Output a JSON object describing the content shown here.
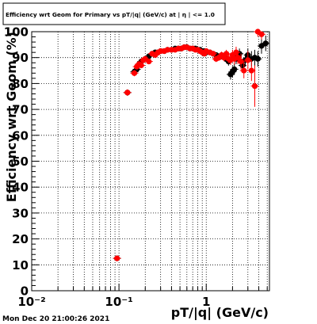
{
  "footer": {
    "timestamp": "Mon Dec 20 21:00:26 2021"
  },
  "chart_data": {
    "type": "scatter",
    "title": "Efficiency wrt Geom for Primary vs pT/|q| (GeV/c) at | η | <= 1.0",
    "xlabel": "pT/|q| (GeV/c)",
    "ylabel": "Efficiency wrt Geom (%)",
    "x_scale": "log",
    "xlim": [
      0.01,
      5.3
    ],
    "ylim": [
      0,
      100
    ],
    "x_tick_labels": [
      "10⁻²",
      "10⁻¹",
      "1"
    ],
    "y_tick_labels": [
      "0",
      "10",
      "20",
      "30",
      "40",
      "50",
      "60",
      "70",
      "80",
      "90",
      "100"
    ],
    "grid": true,
    "grid_style": "dotted",
    "legend": "none",
    "series": [
      {
        "marker_color": "#000000",
        "x": [
          0.095,
          0.125,
          0.15,
          0.16,
          0.17,
          0.18,
          0.2,
          0.22,
          0.24,
          0.26,
          0.28,
          0.3,
          0.33,
          0.36,
          0.4,
          0.44,
          0.48,
          0.52,
          0.56,
          0.6,
          0.65,
          0.7,
          0.75,
          0.8,
          0.85,
          0.9,
          0.95,
          1.0,
          1.1,
          1.2,
          1.3,
          1.4,
          1.5,
          1.6,
          1.7,
          1.8,
          1.9,
          2.0,
          2.1,
          2.2,
          2.3,
          2.4,
          2.6,
          2.8,
          3.0,
          3.3,
          3.6,
          3.9,
          4.3,
          4.8
        ],
        "y": [
          12.5,
          76.5,
          84.5,
          85.5,
          87.5,
          88.5,
          89.5,
          90.5,
          91.5,
          92.0,
          92.0,
          92.5,
          92.5,
          93.0,
          93.0,
          93.5,
          93.5,
          93.5,
          94.0,
          94.0,
          93.5,
          93.5,
          93.5,
          93.0,
          93.0,
          92.5,
          92.5,
          92.0,
          92.0,
          91.5,
          91.0,
          90.5,
          90.5,
          90.0,
          89.5,
          88.5,
          83.5,
          84.5,
          85.5,
          89.5,
          90.5,
          91.5,
          87.0,
          89.0,
          91.0,
          89.5,
          90.0,
          89.5,
          94.5,
          95.5
        ],
        "y_err": [
          1.0,
          1.2,
          1.2,
          1.0,
          1.0,
          1.0,
          0.9,
          0.9,
          0.9,
          0.8,
          0.8,
          0.8,
          0.8,
          0.8,
          0.8,
          0.8,
          0.8,
          0.8,
          0.8,
          0.8,
          0.8,
          0.8,
          0.8,
          0.8,
          0.8,
          0.8,
          0.9,
          0.9,
          0.9,
          1.0,
          1.0,
          1.1,
          1.2,
          1.3,
          1.4,
          1.6,
          2.0,
          2.2,
          2.2,
          2.0,
          2.0,
          2.0,
          2.5,
          2.5,
          2.5,
          3.0,
          3.0,
          3.0,
          3.0,
          3.0
        ]
      },
      {
        "marker_color": "#ff0000",
        "x": [
          0.095,
          0.125,
          0.15,
          0.16,
          0.17,
          0.18,
          0.19,
          0.2,
          0.22,
          0.24,
          0.26,
          0.28,
          0.3,
          0.33,
          0.36,
          0.4,
          0.44,
          0.48,
          0.52,
          0.56,
          0.6,
          0.65,
          0.7,
          0.75,
          0.8,
          0.85,
          0.9,
          0.95,
          1.0,
          1.1,
          1.2,
          1.3,
          1.4,
          1.5,
          1.6,
          1.7,
          1.8,
          1.9,
          2.0,
          2.1,
          2.2,
          2.3,
          2.5,
          2.7,
          3.0,
          3.3,
          3.6,
          3.9,
          4.3
        ],
        "y": [
          12.5,
          76.5,
          84.0,
          86.5,
          87.5,
          87.0,
          89.0,
          89.5,
          88.5,
          91.5,
          91.0,
          92.0,
          92.5,
          92.5,
          93.0,
          93.0,
          93.0,
          93.5,
          93.5,
          94.0,
          94.0,
          93.5,
          93.5,
          93.0,
          93.0,
          92.5,
          92.0,
          91.5,
          92.5,
          92.0,
          91.5,
          89.5,
          90.0,
          91.0,
          90.0,
          91.5,
          89.5,
          89.0,
          91.0,
          89.5,
          92.0,
          90.0,
          88.5,
          85.0,
          89.0,
          85.0,
          79.0,
          100.0,
          99.0
        ],
        "y_err": [
          1.0,
          1.2,
          1.2,
          1.0,
          1.0,
          1.0,
          1.0,
          0.9,
          0.9,
          0.9,
          0.9,
          0.8,
          0.8,
          0.8,
          0.8,
          0.8,
          0.8,
          0.8,
          0.8,
          0.8,
          0.8,
          0.8,
          0.8,
          0.8,
          0.8,
          0.8,
          0.9,
          0.9,
          0.9,
          1.0,
          1.0,
          1.2,
          1.2,
          1.3,
          1.4,
          1.5,
          1.6,
          1.8,
          2.0,
          2.2,
          2.2,
          2.5,
          3.0,
          3.0,
          3.5,
          4.0,
          8.0,
          2.0,
          2.0
        ]
      }
    ]
  }
}
